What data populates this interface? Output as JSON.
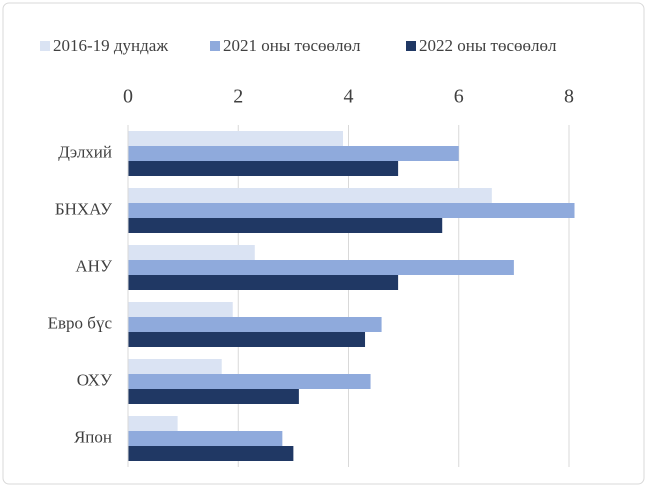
{
  "chart_data": {
    "type": "hbar",
    "categories": [
      "Дэлхий",
      "БНХАУ",
      "АНУ",
      "Евро бүс",
      "ОХУ",
      "Япон"
    ],
    "series": [
      {
        "name": "2016-19 дундаж",
        "color": "#dae3f3",
        "values": [
          3.9,
          6.6,
          2.3,
          1.9,
          1.7,
          0.9
        ]
      },
      {
        "name": "2021 оны төсөөлөл",
        "color": "#8faadc",
        "values": [
          6.0,
          8.1,
          7.0,
          4.6,
          4.4,
          2.8
        ]
      },
      {
        "name": "2022 оны төсөөлөл",
        "color": "#203864",
        "values": [
          4.9,
          5.7,
          4.9,
          4.3,
          3.1,
          3.0
        ]
      }
    ],
    "xlim": [
      0,
      8
    ],
    "xticks": [
      0,
      2,
      4,
      6,
      8
    ],
    "grid": true,
    "legend": "top"
  }
}
